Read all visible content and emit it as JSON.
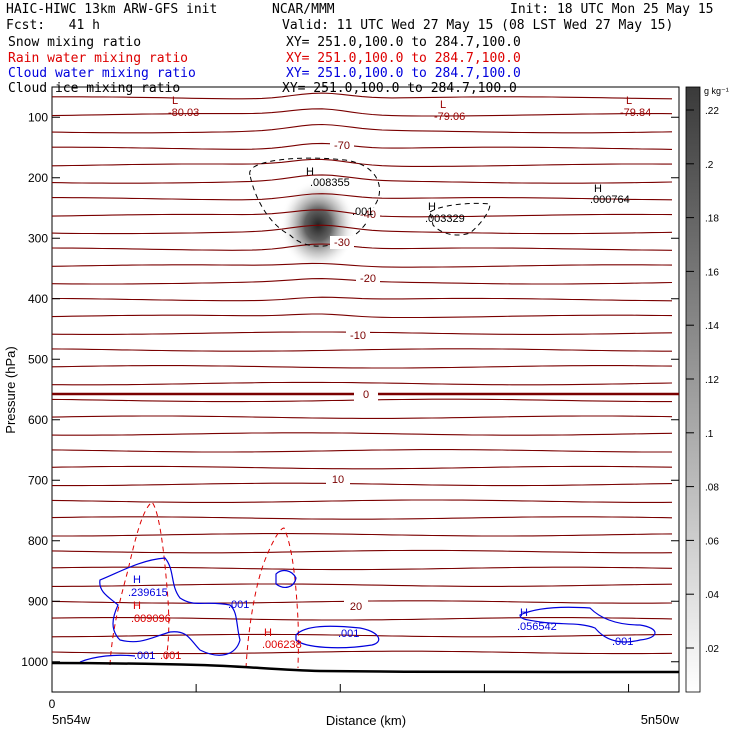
{
  "header": {
    "model": "HAIC-HIWC 13km ARW-GFS init",
    "center": "NCAR/MMM",
    "init": "Init: 18 UTC Mon 25 May 15",
    "fcst": "Fcst:   41 h",
    "valid": "Valid: 11 UTC Wed 27 May 15 (08 LST Wed 27 May 15)",
    "fields": [
      {
        "name": "Snow mixing ratio",
        "xy": "XY= 251.0,100.0 to 284.7,100.0",
        "color": "#000000"
      },
      {
        "name": "Rain water mixing ratio",
        "xy": "XY= 251.0,100.0 to 284.7,100.0",
        "color": "#dd0000"
      },
      {
        "name": "Cloud water mixing ratio",
        "xy": "XY= 251.0,100.0 to 284.7,100.0",
        "color": "#0000dd"
      },
      {
        "name": "Cloud ice mixing ratio",
        "xy": "XY= 251.0,100.0 to 284.7,100.0",
        "color": "#000000"
      }
    ]
  },
  "chart_data": {
    "type": "contour",
    "xlabel": "Distance (km)",
    "ylabel": "Pressure (hPa)",
    "x_start_label": "5n54w",
    "x_end_label": "5n50w",
    "x_tick_origin": "0",
    "yticks": [
      100,
      200,
      300,
      400,
      500,
      600,
      700,
      800,
      900,
      1000
    ],
    "ylim": [
      1050,
      50
    ],
    "colorbar": {
      "unit": "g kg⁻¹",
      "ticks": [
        ".02",
        ".04",
        ".06",
        ".08",
        ".1",
        ".12",
        ".14",
        ".16",
        ".18",
        ".2",
        ".22"
      ]
    },
    "temperature_labels": [
      "-70",
      "-40",
      "-30",
      "-20",
      "-10",
      "0",
      "10",
      "20"
    ],
    "extrema": [
      {
        "kind": "L",
        "value": "-80.03",
        "color": "#990000"
      },
      {
        "kind": "L",
        "value": "-79.06",
        "color": "#990000"
      },
      {
        "kind": "L",
        "value": "-79.84",
        "color": "#990000"
      },
      {
        "kind": "H",
        "value": ".008355",
        "color": "#000000"
      },
      {
        "kind": "H",
        "value": ".003329",
        "color": "#000000"
      },
      {
        "kind": "H",
        "value": ".000764",
        "color": "#000000"
      },
      {
        "kind": "H",
        "value": ".239615",
        "color": "#0000dd"
      },
      {
        "kind": "H",
        "value": ".009096",
        "color": "#dd0000"
      },
      {
        "kind": "H",
        "value": ".006238",
        "color": "#dd0000"
      },
      {
        "kind": "H",
        "value": ".056542",
        "color": "#0000dd"
      }
    ],
    "contour_labels": [
      {
        "text": ".001",
        "color": "#000000"
      },
      {
        "text": ".001",
        "color": "#0000dd"
      },
      {
        "text": ".001",
        "color": "#0000dd"
      },
      {
        "text": ".001",
        "color": "#0000dd"
      },
      {
        "text": ".001",
        "color": "#0000dd"
      },
      {
        "text": ".001",
        "color": "#dd0000"
      }
    ]
  }
}
